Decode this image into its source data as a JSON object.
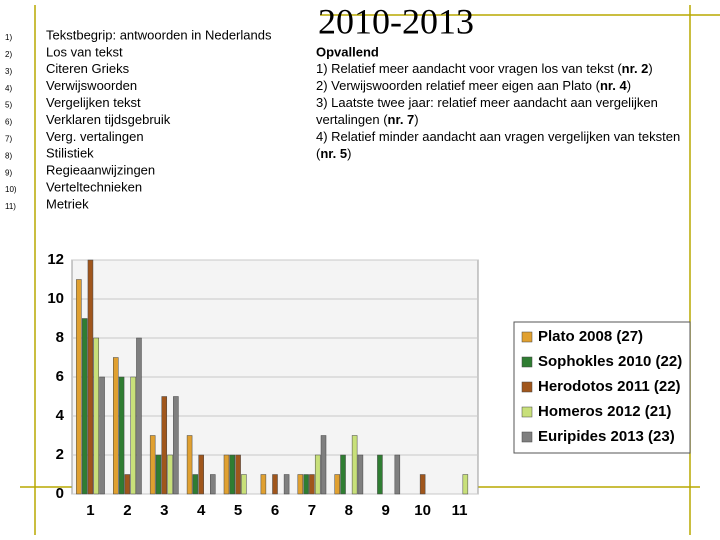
{
  "numbered_list": {
    "numbers": [
      "1)",
      "2)",
      "3)",
      "4)",
      "5)",
      "6)",
      "7)",
      "8)",
      "9)",
      "10)",
      "11)"
    ],
    "items": [
      "Tekstbegrip: antwoorden in Nederlands",
      "Los van tekst",
      "Citeren Grieks",
      "Verwijswoorden",
      "Vergelijken tekst",
      "Verklaren tijdsgebruik",
      "Verg. vertalingen",
      "Stilistiek",
      "Regieaanwijzingen",
      "Verteltechnieken",
      "Metriek"
    ]
  },
  "heading": "2010-2013",
  "notes": {
    "title": "Opvallend",
    "lines": [
      {
        "pre": "1) Relatief meer aandacht voor vragen los van tekst (",
        "bold": "nr. 2",
        "post": ")"
      },
      {
        "pre": "2) Verwijswoorden relatief meer eigen aan Plato (",
        "bold": "nr. 4",
        "post": ")"
      },
      {
        "pre": "3) Laatste twee jaar: relatief meer aandacht aan vergelijken"
      },
      {
        "pre": "vertalingen (",
        "bold": "nr. 7",
        "post": ")"
      },
      {
        "pre": "4) Relatief minder aandacht aan vragen vergelijken van teksten"
      },
      {
        "pre": "(",
        "bold": "nr. 5",
        "post": ")"
      }
    ]
  },
  "chart_data": {
    "type": "bar",
    "categories": [
      "1",
      "2",
      "3",
      "4",
      "5",
      "6",
      "7",
      "8",
      "9",
      "10",
      "11"
    ],
    "series": [
      {
        "name": "Plato 2008 (27)",
        "color": "#e0a030",
        "values": [
          11,
          7,
          3,
          3,
          2,
          1,
          1,
          1,
          0,
          0,
          0
        ]
      },
      {
        "name": "Sophokles 2010 (22)",
        "color": "#2f7d32",
        "values": [
          9,
          6,
          2,
          1,
          2,
          0,
          1,
          2,
          2,
          0,
          0
        ]
      },
      {
        "name": "Herodotos 2011 (22)",
        "color": "#a0561c",
        "values": [
          12,
          1,
          5,
          2,
          2,
          1,
          1,
          0,
          0,
          1,
          0
        ]
      },
      {
        "name": "Homeros 2012 (21)",
        "color": "#c8e07a",
        "values": [
          8,
          6,
          2,
          0,
          1,
          0,
          2,
          3,
          0,
          0,
          1
        ]
      },
      {
        "name": "Euripides 2013 (23)",
        "color": "#7f7f7f",
        "values": [
          6,
          8,
          5,
          1,
          0,
          1,
          3,
          2,
          2,
          0,
          0
        ]
      }
    ],
    "ylim": [
      0,
      12
    ],
    "yticks": [
      0,
      2,
      4,
      6,
      8,
      10,
      12
    ],
    "grid": true,
    "legend": "right"
  }
}
